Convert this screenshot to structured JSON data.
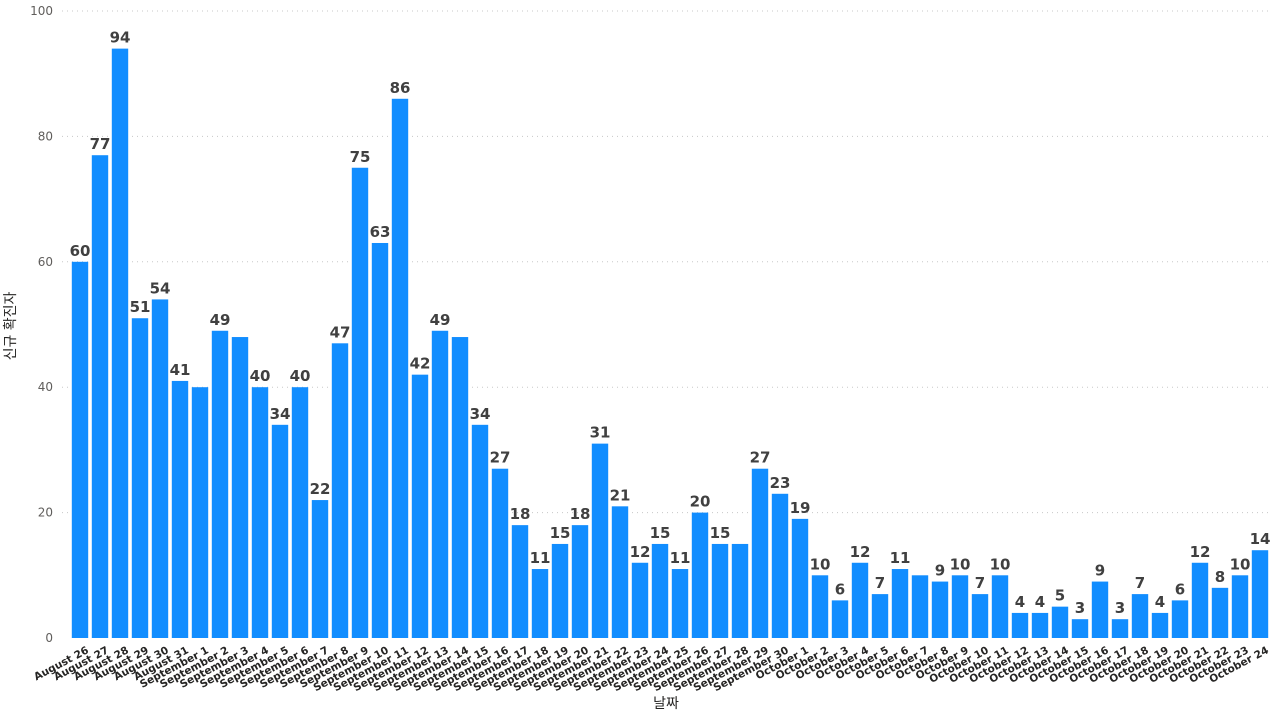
{
  "chart_data": {
    "type": "bar",
    "title": "",
    "xlabel": "날짜",
    "ylabel": "신규 확진자",
    "ylim": [
      0,
      100
    ],
    "yticks": [
      0,
      20,
      40,
      60,
      80,
      100
    ],
    "grid": true,
    "bar_color": "#118dff",
    "categories": [
      "August 26",
      "August 27",
      "August 28",
      "August 29",
      "August 30",
      "August 31",
      "September 1",
      "September 2",
      "September 3",
      "September 4",
      "September 5",
      "September 6",
      "September 7",
      "September 8",
      "September 9",
      "September 10",
      "September 11",
      "September 12",
      "September 13",
      "September 14",
      "September 15",
      "September 16",
      "September 17",
      "September 18",
      "September 19",
      "September 20",
      "September 21",
      "September 22",
      "September 23",
      "September 24",
      "September 25",
      "September 26",
      "September 27",
      "September 28",
      "September 29",
      "September 30",
      "October 1",
      "October 2",
      "October 3",
      "October 4",
      "October 5",
      "October 6",
      "October 7",
      "October 8",
      "October 9",
      "October 10",
      "October 11",
      "October 12",
      "October 13",
      "October 14",
      "October 15",
      "October 16",
      "October 17",
      "October 18",
      "October 19",
      "October 20",
      "October 21",
      "October 22",
      "October 23",
      "October 24"
    ],
    "values": [
      60,
      77,
      94,
      51,
      54,
      41,
      40,
      49,
      48,
      40,
      34,
      40,
      22,
      47,
      75,
      63,
      86,
      42,
      49,
      48,
      34,
      27,
      18,
      11,
      15,
      18,
      31,
      21,
      12,
      15,
      11,
      20,
      15,
      15,
      27,
      23,
      19,
      10,
      6,
      12,
      7,
      11,
      10,
      9,
      10,
      7,
      10,
      4,
      4,
      5,
      3,
      9,
      3,
      7,
      4,
      6,
      12,
      8,
      10,
      14
    ],
    "data_labels_shown": [
      true,
      true,
      true,
      true,
      true,
      true,
      false,
      true,
      false,
      true,
      true,
      true,
      true,
      true,
      true,
      true,
      true,
      true,
      true,
      false,
      true,
      true,
      true,
      true,
      true,
      true,
      true,
      true,
      true,
      true,
      true,
      true,
      true,
      false,
      true,
      true,
      true,
      true,
      true,
      true,
      true,
      true,
      false,
      true,
      true,
      true,
      true,
      true,
      true,
      true,
      true,
      true,
      true,
      true,
      true,
      true,
      true,
      true,
      true,
      true
    ]
  }
}
